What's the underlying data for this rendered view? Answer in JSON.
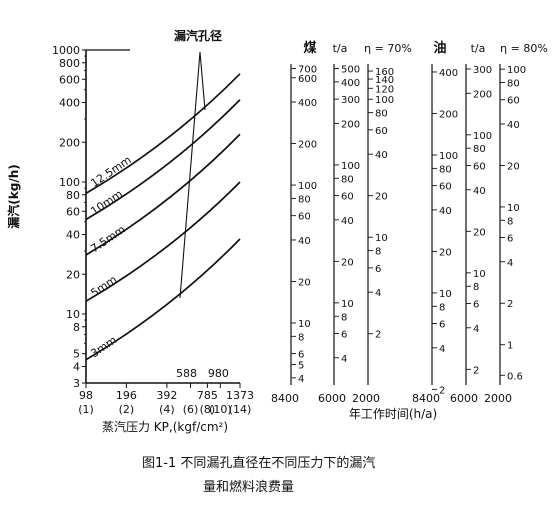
{
  "chart_data": {
    "type": "line",
    "ylabel": "漏汽(kg/h)",
    "y_scale": "log",
    "ylim": [
      3,
      1000
    ],
    "y_ticks": [
      1000,
      800,
      600,
      400,
      200,
      100,
      80,
      60,
      40,
      20,
      10,
      8,
      5,
      4,
      3
    ],
    "y_tick_labels": [
      "1000",
      "800",
      "600",
      "400",
      "200",
      "100",
      "80",
      "60",
      "40",
      "20",
      "10",
      "8",
      "5",
      "4",
      "3"
    ],
    "x_scale": "log",
    "xlim": [
      98,
      1373
    ],
    "xlabel": "蒸汽压力 KP,(kgf/cm²)",
    "x_ticks_kpa": [
      {
        "value": 98,
        "label": "98"
      },
      {
        "value": 196,
        "label": "196"
      },
      {
        "value": 392,
        "label": "392"
      },
      {
        "value": 588,
        "label": "588"
      },
      {
        "value": 785,
        "label": "785"
      },
      {
        "value": 980,
        "label": "980"
      },
      {
        "value": 1373,
        "label": "1373"
      }
    ],
    "x_ticks_kgf": [
      {
        "value": 98,
        "label": "(1)"
      },
      {
        "value": 196,
        "label": "(2)"
      },
      {
        "value": 392,
        "label": "(4)"
      },
      {
        "value": 588,
        "label": "(6)"
      },
      {
        "value": 785,
        "label": "(8)"
      },
      {
        "value": 980,
        "label": "(10)"
      },
      {
        "value": 1373,
        "label": "(14)"
      }
    ],
    "series": [
      {
        "name": "3mm",
        "x": [
          98,
          1373
        ],
        "y": [
          4.5,
          37
        ]
      },
      {
        "name": "5mm",
        "x": [
          98,
          1373
        ],
        "y": [
          12.5,
          100
        ]
      },
      {
        "name": "7.5mm",
        "x": [
          98,
          1373
        ],
        "y": [
          28,
          230
        ]
      },
      {
        "name": "10mm",
        "x": [
          98,
          1373
        ],
        "y": [
          52,
          420
        ]
      },
      {
        "name": "12.5mm",
        "x": [
          98,
          1373
        ],
        "y": [
          82,
          660
        ]
      }
    ],
    "annotations": [
      {
        "text": "漏汽孔径"
      }
    ],
    "scales": {
      "group_labels": {
        "coal": "煤",
        "oil": "油",
        "unit_coal": "t/a",
        "eta_coal": "η = 70%",
        "unit_oil": "t/a",
        "eta_oil": "η = 80%"
      },
      "axes": [
        {
          "name": "hours-8400-coal",
          "min": 3.55,
          "max": 755,
          "ticks": [
            700,
            600,
            400,
            200,
            100,
            80,
            60,
            40,
            20,
            10,
            8,
            6,
            5,
            4
          ],
          "tick_labels": [
            "700",
            "600",
            "400",
            "200",
            "100",
            "80",
            "60",
            "40",
            "20",
            "10",
            "8",
            "6",
            "5",
            "4"
          ]
        },
        {
          "name": "hours-6000-coal",
          "min": 2.54,
          "max": 539,
          "ticks": [
            500,
            400,
            300,
            200,
            100,
            80,
            60,
            40,
            20,
            10,
            8,
            6,
            4
          ],
          "tick_labels": [
            "500",
            "400",
            "300",
            "200",
            "100",
            "80",
            "60",
            "40",
            "20",
            "10",
            "8",
            "6",
            "4"
          ]
        },
        {
          "name": "hours-2000-coal",
          "min": 0.85,
          "max": 180,
          "ticks": [
            160,
            140,
            120,
            100,
            80,
            60,
            40,
            20,
            10,
            8,
            6,
            4,
            2
          ],
          "tick_labels": [
            "160",
            "140",
            "120",
            "100",
            "80",
            "60",
            "40",
            "20",
            "10",
            "8",
            "6",
            "4",
            "2"
          ]
        },
        {
          "name": "hours-8400-oil",
          "min": 2.15,
          "max": 457,
          "ticks": [
            400,
            200,
            100,
            80,
            60,
            40,
            20,
            10,
            8,
            6,
            4,
            2
          ],
          "tick_labels": [
            "400",
            "200",
            "100",
            "80",
            "60",
            "40",
            "20",
            "10",
            "8",
            "6",
            "4",
            "2"
          ]
        },
        {
          "name": "hours-6000-oil",
          "min": 1.54,
          "max": 326,
          "ticks": [
            300,
            200,
            100,
            80,
            60,
            40,
            20,
            10,
            8,
            6,
            4,
            2
          ],
          "tick_labels": [
            "300",
            "200",
            "100",
            "80",
            "60",
            "40",
            "20",
            "10",
            "8",
            "6",
            "4",
            "2"
          ]
        },
        {
          "name": "hours-2000-oil",
          "min": 0.51,
          "max": 109,
          "ticks": [
            100,
            80,
            60,
            40,
            20,
            10,
            8,
            6,
            4,
            2,
            1,
            0.6
          ],
          "tick_labels": [
            "100",
            "80",
            "60",
            "40",
            "20",
            "10",
            "8",
            "6",
            "4",
            "2",
            "1",
            "0.6"
          ]
        }
      ],
      "hours_labels": [
        "8400",
        "6000",
        "2000",
        "8400",
        "6000",
        "2000"
      ],
      "hours_title": "年工作时间(h/a)"
    }
  },
  "caption": {
    "line1": "图1-1  不同漏孔直径在不同压力下的漏汽",
    "line2": "量和燃料浪费量"
  }
}
